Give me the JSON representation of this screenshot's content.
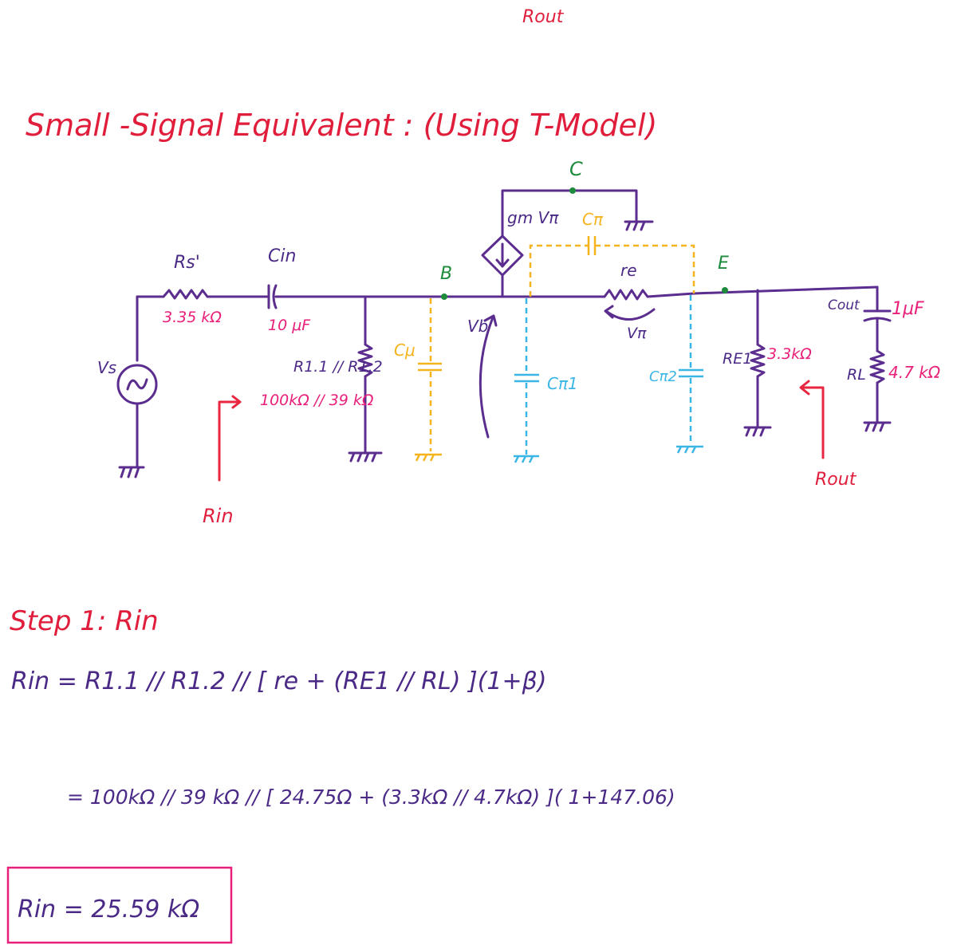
{
  "colors": {
    "wire": "#5b2d8e",
    "heading": "#e01e3c",
    "value": "#e8207a",
    "node": "#1e8a3c",
    "cmu": "#f5b41e",
    "cpi": "#3ab6e6",
    "formula": "#4a2a86"
  },
  "top_label": "Rout",
  "heading": {
    "title": "Small -Signal  Equivalent :  (Using  T-Model)"
  },
  "nodes": {
    "c": "C",
    "b": "B",
    "e": "E"
  },
  "components": {
    "rs_name": "Rs'",
    "rs_value": "3.35 kΩ",
    "cin_name": "Cin",
    "cin_value": "10 μF",
    "vs_name": "Vs",
    "r1_name": "R1.1 // R1.2",
    "r1_value": "100kΩ // 39 kΩ",
    "cmu_name": "Cμ",
    "vb_name": "Vb",
    "gm_name": "gm Vπ",
    "cpi_name": "Cπ",
    "re_name": "re",
    "vpi_name": "Vπ",
    "cpi1_name": "Cπ1",
    "cpi2_name": "Cπ2",
    "re1_name": "RE1",
    "re1_value": "3.3kΩ",
    "cout_name": "Cout",
    "cout_value": "1μF",
    "rl_name": "RL",
    "rl_value": "4.7 kΩ"
  },
  "labels": {
    "rin": "Rin",
    "rout": "Rout"
  },
  "step": {
    "title": "Step 1:  Rin",
    "eq1": "Rin =  R1.1 // R1.2 //  [ re   + (RE1 // RL) ](1+β)",
    "eq2": "= 100kΩ // 39 kΩ  //  [ 24.75Ω  + (3.3kΩ // 4.7kΩ) ]( 1+147.06)",
    "result": "Rin  =  25.59  kΩ"
  }
}
